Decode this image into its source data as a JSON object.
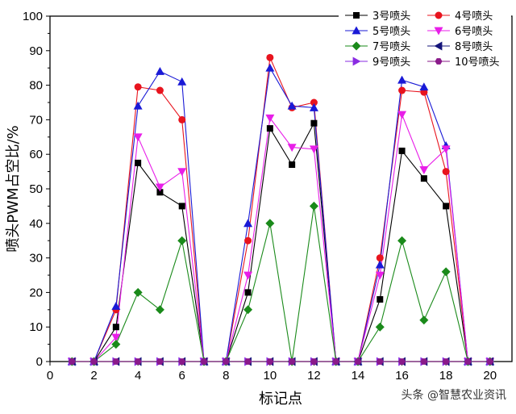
{
  "chart_data": {
    "type": "line",
    "xlabel": "标记点",
    "ylabel": "喷头PWM占空比/%",
    "xlim": [
      0,
      21
    ],
    "ylim": [
      0,
      100
    ],
    "xticks": [
      0,
      2,
      4,
      6,
      8,
      10,
      12,
      14,
      16,
      18,
      20
    ],
    "yticks": [
      0,
      10,
      20,
      30,
      40,
      50,
      60,
      70,
      80,
      90,
      100
    ],
    "legend_position": "top-right",
    "x": [
      1,
      2,
      3,
      4,
      5,
      6,
      7,
      8,
      9,
      10,
      11,
      12,
      13,
      14,
      15,
      16,
      17,
      18,
      19,
      20
    ],
    "series": [
      {
        "name": "3号喷头",
        "marker": "square",
        "color": "#000000",
        "values": [
          0,
          0,
          10,
          57.5,
          49,
          45,
          0,
          0,
          20,
          67.5,
          57,
          69,
          0,
          0,
          18,
          61,
          53,
          45,
          0,
          0
        ]
      },
      {
        "name": "4号喷头",
        "marker": "circle",
        "color": "#e8141e",
        "values": [
          0,
          0,
          15,
          79.5,
          78.5,
          70,
          0,
          0,
          35,
          88,
          73.5,
          75,
          0,
          0,
          30,
          78.5,
          78,
          55,
          0,
          0
        ]
      },
      {
        "name": "5号喷头",
        "marker": "triangle-up",
        "color": "#1a1ad6",
        "values": [
          0,
          0,
          16,
          74,
          84,
          81,
          0,
          0,
          40,
          85,
          74,
          73.5,
          0,
          0,
          28,
          81.5,
          79.5,
          62.5,
          0,
          0
        ]
      },
      {
        "name": "6号喷头",
        "marker": "triangle-down",
        "color": "#e81ee8",
        "values": [
          0,
          0,
          7,
          65,
          50.5,
          55,
          0,
          0,
          25,
          70.5,
          62,
          61.5,
          0,
          0,
          25,
          71.5,
          55.5,
          61.5,
          0,
          0
        ]
      },
      {
        "name": "7号喷头",
        "marker": "diamond",
        "color": "#1a8a1a",
        "values": [
          0,
          0,
          5,
          20,
          15,
          35,
          0,
          0,
          15,
          40,
          0,
          45,
          0,
          0,
          10,
          35,
          12,
          26,
          0,
          0
        ]
      },
      {
        "name": "8号喷头",
        "marker": "triangle-left",
        "color": "#14147a",
        "values": [
          0,
          0,
          0,
          0,
          0,
          0,
          0,
          0,
          0,
          0,
          0,
          0,
          0,
          0,
          0,
          0,
          0,
          0,
          0,
          0
        ]
      },
      {
        "name": "9号喷头",
        "marker": "triangle-right",
        "color": "#8a2be2",
        "values": [
          0,
          0,
          0,
          0,
          0,
          0,
          0,
          0,
          0,
          0,
          0,
          0,
          0,
          0,
          0,
          0,
          0,
          0,
          0,
          0
        ]
      },
      {
        "name": "10号喷头",
        "marker": "hexagon",
        "color": "#8a1a8a",
        "values": [
          0,
          0,
          0,
          0,
          0,
          0,
          0,
          0,
          0,
          0,
          0,
          0,
          0,
          0,
          0,
          0,
          0,
          0,
          0,
          0
        ]
      }
    ]
  },
  "watermark": "头条 @智慧农业资讯"
}
